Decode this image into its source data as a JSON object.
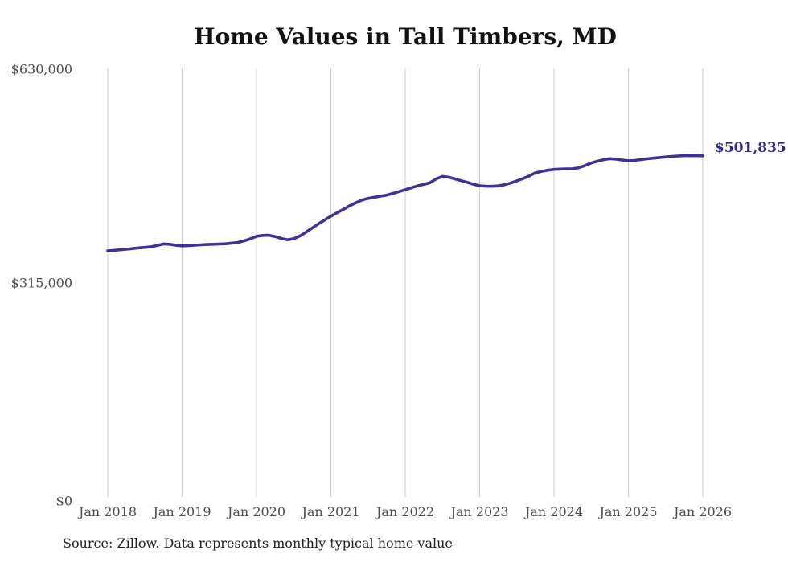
{
  "title": "Home Values in Tall Timbers, MD",
  "source_note": "Source: Zillow. Data represents monthly typical home value",
  "end_label": "$501,835",
  "colors": {
    "line": "#3c3494",
    "end_label": "#2f2b85",
    "grid": "#cccccc",
    "axis_text": "#4d4d4d",
    "title_text": "#111111",
    "source_text": "#222222",
    "background": "#ffffff"
  },
  "y_axis": {
    "labels": [
      "$630,000",
      "$315,000",
      "$0"
    ],
    "tick_values": [
      630000,
      315000,
      0
    ],
    "min": 0,
    "max": 630000
  },
  "x_axis": {
    "tick_labels": [
      "Jan 2018",
      "Jan 2019",
      "Jan 2020",
      "Jan 2021",
      "Jan 2022",
      "Jan 2023",
      "Jan 2024",
      "Jan 2025",
      "Jan 2026"
    ]
  },
  "chart_data": {
    "type": "line",
    "title": "Home Values in Tall Timbers, MD",
    "xlabel": "",
    "ylabel": "",
    "unit": "USD",
    "frequency": "monthly",
    "ylim": [
      0,
      630000
    ],
    "y_tick_values": [
      0,
      315000,
      630000
    ],
    "grid": "vertical-only",
    "legend_position": "none",
    "line_color": "#3c3494",
    "last_value_label": "$501,835",
    "x": [
      "2018-01",
      "2018-02",
      "2018-03",
      "2018-04",
      "2018-05",
      "2018-06",
      "2018-07",
      "2018-08",
      "2018-09",
      "2018-10",
      "2018-11",
      "2018-12",
      "2019-01",
      "2019-02",
      "2019-03",
      "2019-04",
      "2019-05",
      "2019-06",
      "2019-07",
      "2019-08",
      "2019-09",
      "2019-10",
      "2019-11",
      "2019-12",
      "2020-01",
      "2020-02",
      "2020-03",
      "2020-04",
      "2020-05",
      "2020-06",
      "2020-07",
      "2020-08",
      "2020-09",
      "2020-10",
      "2020-11",
      "2020-12",
      "2021-01",
      "2021-02",
      "2021-03",
      "2021-04",
      "2021-05",
      "2021-06",
      "2021-07",
      "2021-08",
      "2021-09",
      "2021-10",
      "2021-11",
      "2021-12",
      "2022-01",
      "2022-02",
      "2022-03",
      "2022-04",
      "2022-05",
      "2022-06",
      "2022-07",
      "2022-08",
      "2022-09",
      "2022-10",
      "2022-11",
      "2022-12",
      "2023-01",
      "2023-02",
      "2023-03",
      "2023-04",
      "2023-05",
      "2023-06",
      "2023-07",
      "2023-08",
      "2023-09",
      "2023-10",
      "2023-11",
      "2023-12",
      "2024-01",
      "2024-02",
      "2024-03",
      "2024-04",
      "2024-05",
      "2024-06",
      "2024-07",
      "2024-08",
      "2024-09",
      "2024-10",
      "2024-11",
      "2024-12",
      "2025-01",
      "2025-02",
      "2025-03",
      "2025-04",
      "2025-05",
      "2025-06",
      "2025-07",
      "2025-08",
      "2025-09",
      "2025-10",
      "2025-11",
      "2025-12",
      "2026-01"
    ],
    "values": [
      362700,
      363400,
      364200,
      365000,
      366000,
      367000,
      367800,
      368700,
      370600,
      372800,
      372300,
      370800,
      370000,
      370300,
      370900,
      371500,
      372000,
      372400,
      372700,
      373100,
      374000,
      375000,
      377300,
      380400,
      384000,
      385300,
      385500,
      383600,
      380900,
      379000,
      380500,
      384500,
      390200,
      396200,
      402200,
      407900,
      413400,
      418500,
      423500,
      428500,
      433000,
      437000,
      439500,
      441200,
      442800,
      444300,
      446800,
      449500,
      452200,
      455100,
      458000,
      460200,
      462600,
      468100,
      471700,
      470600,
      468100,
      465500,
      463000,
      460300,
      458100,
      457400,
      457200,
      457800,
      459500,
      462100,
      465100,
      468600,
      472500,
      476900,
      479200,
      480800,
      482000,
      482500,
      482700,
      482900,
      484500,
      487500,
      491400,
      494000,
      496200,
      497700,
      497000,
      495600,
      494700,
      495200,
      496300,
      497500,
      498500,
      499400,
      500200,
      501000,
      501700,
      502100,
      502300,
      502100,
      501835
    ]
  }
}
